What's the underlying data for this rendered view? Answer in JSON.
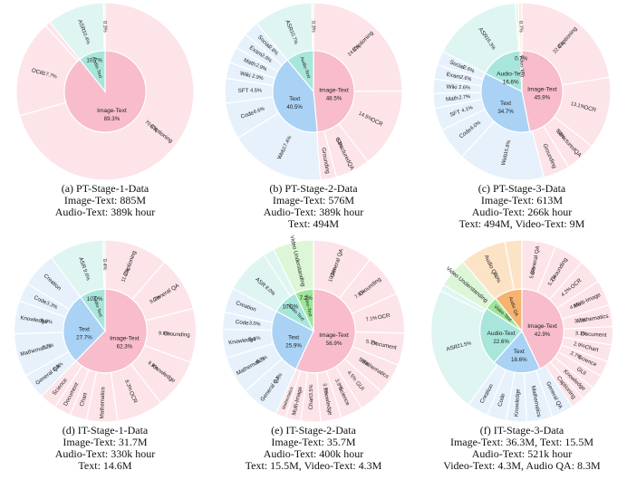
{
  "chart_data": [
    {
      "type": "sunburst",
      "caption": [
        "(a) PT-Stage-1-Data",
        "Image-Text: 885M",
        "Audio-Text: 389k hour"
      ],
      "inner": [
        {
          "name": "Image-Text",
          "value": 89.3,
          "pct": "89.3%",
          "color": "#f8bccb"
        },
        {
          "name": "Audio-Text",
          "value": 10.7,
          "pct": "10.7%",
          "color": "#a8e6dc"
        }
      ],
      "outer": [
        {
          "name": "Captioning",
          "value": 70.6,
          "pct": "70.6%",
          "color": "#fce4e8"
        },
        {
          "name": "OCR",
          "value": 17.7,
          "pct": "17.7%",
          "color": "#fce4e8"
        },
        {
          "name": "",
          "value": 1.0,
          "pct": "",
          "color": "#fce4e8"
        },
        {
          "name": "ASR",
          "value": 10.4,
          "pct": "10.4%",
          "color": "#dff5f2"
        },
        {
          "name": "",
          "value": 0.3,
          "pct": "0.3%",
          "color": "#dff5f2"
        }
      ]
    },
    {
      "type": "sunburst",
      "caption": [
        "(b) PT-Stage-2-Data",
        "Image-Text: 576M",
        "Audio-Text: 389k hour",
        "Text: 494M"
      ],
      "inner": [
        {
          "name": "Image-Text",
          "value": 48.5,
          "pct": "48.5%",
          "color": "#f8bccb"
        },
        {
          "name": "Text",
          "value": 40.5,
          "pct": "40.5%",
          "color": "#a9d2f5"
        },
        {
          "name": "Audio-Text",
          "value": 11.0,
          "pct": "",
          "color": "#a8e6dc"
        }
      ],
      "outer": [
        {
          "name": "Captioning",
          "value": 24.8,
          "pct": "24.8%",
          "color": "#fce4e8"
        },
        {
          "name": "OCR",
          "value": 14.5,
          "pct": "14.5%",
          "color": "#fce4e8"
        },
        {
          "name": "StructuredQA",
          "value": 6.3,
          "pct": "6.3%",
          "color": "#fce4e8"
        },
        {
          "name": "Grounding",
          "value": 2.9,
          "pct": "",
          "color": "#fce4e8"
        },
        {
          "name": "Web",
          "value": 17.4,
          "pct": "17.4%",
          "color": "#e6f1fb"
        },
        {
          "name": "Code",
          "value": 6.6,
          "pct": "6.6%",
          "color": "#e6f1fb"
        },
        {
          "name": "SFT",
          "value": 4.5,
          "pct": "4.5%",
          "color": "#e6f1fb"
        },
        {
          "name": "Wiki",
          "value": 2.9,
          "pct": "2.9%",
          "color": "#e6f1fb"
        },
        {
          "name": "Math",
          "value": 2.9,
          "pct": "2.9%",
          "color": "#e6f1fb"
        },
        {
          "name": "Exam",
          "value": 2.9,
          "pct": "2.9%",
          "color": "#e6f1fb"
        },
        {
          "name": "Social",
          "value": 2.8,
          "pct": "2.8%",
          "color": "#e6f1fb"
        },
        {
          "name": "ASR",
          "value": 10.7,
          "pct": "10.7%",
          "color": "#dff5f2"
        },
        {
          "name": "",
          "value": 0.3,
          "pct": "0.3%",
          "color": "#dff5f2"
        }
      ]
    },
    {
      "type": "sunburst",
      "caption": [
        "(c) PT-Stage-3-Data",
        "Image-Text: 613M",
        "Audio-Text: 266k hour",
        "Text: 494M, Video-Text: 9M"
      ],
      "inner": [
        {
          "name": "Image-Text",
          "value": 45.9,
          "pct": "45.9%",
          "color": "#f8bccb"
        },
        {
          "name": "Text",
          "value": 34.7,
          "pct": "34.7%",
          "color": "#a9d2f5"
        },
        {
          "name": "Audio-Text",
          "value": 16.6,
          "pct": "16.6%",
          "color": "#a8e6dc"
        },
        {
          "name": "Video-Text",
          "value": 0.7,
          "pct": "0.7%",
          "color": "#f6cfa0"
        }
      ],
      "outer": [
        {
          "name": "Captioning",
          "value": 22.4,
          "pct": "22.4%",
          "color": "#fce4e8"
        },
        {
          "name": "OCR",
          "value": 13.1,
          "pct": "13.1%",
          "color": "#fce4e8"
        },
        {
          "name": "StructuredQA",
          "value": 5.6,
          "pct": "5.6%",
          "color": "#fce4e8"
        },
        {
          "name": "Grounding",
          "value": 4.8,
          "pct": "",
          "color": "#fce4e8"
        },
        {
          "name": "Web",
          "value": 15.8,
          "pct": "15.8%",
          "color": "#e6f1fb"
        },
        {
          "name": "Code",
          "value": 6.0,
          "pct": "6.0%",
          "color": "#e6f1fb"
        },
        {
          "name": "SFT",
          "value": 4.1,
          "pct": "4.1%",
          "color": "#e6f1fb"
        },
        {
          "name": "Math",
          "value": 2.7,
          "pct": "2.7%",
          "color": "#e6f1fb"
        },
        {
          "name": "Wiki",
          "value": 2.6,
          "pct": "2.6%",
          "color": "#e6f1fb"
        },
        {
          "name": "Exam",
          "value": 2.6,
          "pct": "2.6%",
          "color": "#e6f1fb"
        },
        {
          "name": "Social",
          "value": 2.6,
          "pct": "2.6%",
          "color": "#e6f1fb"
        },
        {
          "name": "ASR",
          "value": 16.3,
          "pct": "16.3%",
          "color": "#dff5f2"
        },
        {
          "name": "",
          "value": 0.5,
          "pct": "",
          "color": "#dff5f2"
        },
        {
          "name": "",
          "value": 0.7,
          "pct": "0.7%",
          "color": "#fdeedd"
        }
      ]
    },
    {
      "type": "sunburst",
      "caption": [
        "(d) IT-Stage-1-Data",
        "Image-Text: 31.7M",
        "Audio-Text: 330k hour",
        "Text: 14.6M"
      ],
      "inner": [
        {
          "name": "Image-Text",
          "value": 62.3,
          "pct": "62.3%",
          "color": "#f8bccb"
        },
        {
          "name": "Text",
          "value": 27.7,
          "pct": "27.7%",
          "color": "#a9d2f5"
        },
        {
          "name": "Audio-Text",
          "value": 10.0,
          "pct": "10.0%",
          "color": "#a8e6dc"
        }
      ],
      "outer": [
        {
          "name": "Captioning",
          "value": 11.3,
          "pct": "11.3%",
          "color": "#fce4e8"
        },
        {
          "name": "General QA",
          "value": 9.7,
          "pct": "9.7%",
          "color": "#fce4e8"
        },
        {
          "name": "Grounding",
          "value": 9.6,
          "pct": "9.6%",
          "color": "#fce4e8"
        },
        {
          "name": "Knowledge",
          "value": 8.9,
          "pct": "8.9%",
          "color": "#fce4e8"
        },
        {
          "name": "OCR",
          "value": 8.3,
          "pct": "8.3%",
          "color": "#fce4e8"
        },
        {
          "name": "Mathematics",
          "value": 5.5,
          "pct": "",
          "color": "#fce4e8"
        },
        {
          "name": "Chart",
          "value": 3.0,
          "pct": "",
          "color": "#fce4e8"
        },
        {
          "name": "Document",
          "value": 3.0,
          "pct": "",
          "color": "#fce4e8"
        },
        {
          "name": "Science",
          "value": 3.0,
          "pct": "",
          "color": "#fce4e8"
        },
        {
          "name": "General QA",
          "value": 4.5,
          "pct": "4.5%",
          "color": "#e6f1fb"
        },
        {
          "name": "Mathematics",
          "value": 7.7,
          "pct": "7.7%",
          "color": "#e6f1fb"
        },
        {
          "name": "Knowledge",
          "value": 5.9,
          "pct": "5.9%",
          "color": "#e6f1fb"
        },
        {
          "name": "Code",
          "value": 3.3,
          "pct": "3.3%",
          "color": "#e6f1fb"
        },
        {
          "name": "Creation",
          "value": 6.3,
          "pct": "",
          "color": "#e6f1fb"
        },
        {
          "name": "ASR",
          "value": 9.6,
          "pct": "9.6%",
          "color": "#dff5f2"
        },
        {
          "name": "",
          "value": 0.4,
          "pct": "0.4%",
          "color": "#dff5f2"
        }
      ]
    },
    {
      "type": "sunburst",
      "caption": [
        "(e) IT-Stage-2-Data",
        "Image-Text: 35.7M",
        "Audio-Text: 400k hour",
        "Text: 15.5M, Video-Text: 4.3M"
      ],
      "inner": [
        {
          "name": "Image-Text",
          "value": 56.9,
          "pct": "56.9%",
          "color": "#f8bccb"
        },
        {
          "name": "Text",
          "value": 25.9,
          "pct": "25.9%",
          "color": "#a9d2f5"
        },
        {
          "name": "Audio-Text",
          "value": 10.0,
          "pct": "10.0%",
          "color": "#a8e6dc"
        },
        {
          "name": "Video-Text",
          "value": 7.2,
          "pct": "7.2%",
          "color": "#9ee69a"
        }
      ],
      "outer": [
        {
          "name": "General QA",
          "value": 10.6,
          "pct": "10.6%",
          "color": "#fce4e8"
        },
        {
          "name": "Grounding",
          "value": 7.6,
          "pct": "7.6%",
          "color": "#fce4e8"
        },
        {
          "name": "OCR",
          "value": 7.1,
          "pct": "7.1%",
          "color": "#fce4e8"
        },
        {
          "name": "Document",
          "value": 5.7,
          "pct": "5.7%",
          "color": "#fce4e8"
        },
        {
          "name": "Mathematics",
          "value": 5.5,
          "pct": "5.5%",
          "color": "#fce4e8"
        },
        {
          "name": "GUI",
          "value": 4.5,
          "pct": "4.5%",
          "color": "#fce4e8"
        },
        {
          "name": "Science",
          "value": 3.9,
          "pct": "3.9%",
          "color": "#fce4e8"
        },
        {
          "name": "Knowledge",
          "value": 3.7,
          "pct": "3.7%",
          "color": "#fce4e8"
        },
        {
          "name": "Chart",
          "value": 3.5,
          "pct": "3.5%",
          "color": "#fce4e8"
        },
        {
          "name": "Multi-Image",
          "value": 2.7,
          "pct": "",
          "color": "#fce4e8"
        },
        {
          "name": "Mathematics",
          "value": 1.8,
          "pct": "",
          "color": "#fce4e8"
        },
        {
          "name": "General QA",
          "value": 6.7,
          "pct": "6.7%",
          "color": "#e6f1fb"
        },
        {
          "name": "Mathematics",
          "value": 6.7,
          "pct": "6.7%",
          "color": "#e6f1fb"
        },
        {
          "name": "Knowledge",
          "value": 5.1,
          "pct": "5.1%",
          "color": "#e6f1fb"
        },
        {
          "name": "Code",
          "value": 3.0,
          "pct": "3.0%",
          "color": "#e6f1fb"
        },
        {
          "name": "Creation",
          "value": 4.4,
          "pct": "",
          "color": "#e6f1fb"
        },
        {
          "name": "ASR",
          "value": 8.0,
          "pct": "8.0%",
          "color": "#dff5f2"
        },
        {
          "name": "",
          "value": 2.0,
          "pct": "",
          "color": "#dff5f2"
        },
        {
          "name": "Video Understanding",
          "value": 7.2,
          "pct": "",
          "color": "#ddf6d8"
        }
      ]
    },
    {
      "type": "sunburst",
      "caption": [
        "(f) IT-Stage-3-Data",
        "Image-Text: 36.3M, Text: 15.5M",
        "Audio-Text: 521k hour",
        "Video-Text: 4.3M, Audio QA: 8.3M"
      ],
      "inner": [
        {
          "name": "Image-Text",
          "value": 42.9,
          "pct": "42.9%",
          "color": "#f8bccb"
        },
        {
          "name": "Text",
          "value": 18.6,
          "pct": "18.6%",
          "color": "#a9d2f5"
        },
        {
          "name": "Audio-Text",
          "value": 22.6,
          "pct": "22.6%",
          "color": "#a8e6dc"
        },
        {
          "name": "Video-Text",
          "value": 5.1,
          "pct": "",
          "color": "#9ee69a"
        },
        {
          "name": "Audio QA",
          "value": 10.8,
          "pct": "",
          "color": "#f6b36e"
        }
      ],
      "outer": [
        {
          "name": "General QA",
          "value": 5.8,
          "pct": "5.8%",
          "color": "#fce4e8"
        },
        {
          "name": "Grounding",
          "value": 5.2,
          "pct": "5.2%",
          "color": "#fce4e8"
        },
        {
          "name": "OCR",
          "value": 4.2,
          "pct": "4.2%",
          "color": "#fce4e8"
        },
        {
          "name": "Multi-Image",
          "value": 4.4,
          "pct": "4.4%",
          "color": "#fce4e8"
        },
        {
          "name": "Mathematics",
          "value": 3.7,
          "pct": "3.7%",
          "color": "#fce4e8"
        },
        {
          "name": "Document",
          "value": 3.1,
          "pct": "3.1%",
          "color": "#fce4e8"
        },
        {
          "name": "Chart",
          "value": 2.9,
          "pct": "2.9%",
          "color": "#fce4e8"
        },
        {
          "name": "Science",
          "value": 2.7,
          "pct": "2.7%",
          "color": "#fce4e8"
        },
        {
          "name": "GUI",
          "value": 2.4,
          "pct": "",
          "color": "#fce4e8"
        },
        {
          "name": "Knowledge",
          "value": 2.4,
          "pct": "",
          "color": "#fce4e8"
        },
        {
          "name": "Captioning",
          "value": 2.3,
          "pct": "",
          "color": "#fce4e8"
        },
        {
          "name": "General QA",
          "value": 3.8,
          "pct": "",
          "color": "#e6f1fb"
        },
        {
          "name": "Mathematics",
          "value": 4.4,
          "pct": "",
          "color": "#e6f1fb"
        },
        {
          "name": "Knowledge",
          "value": 3.5,
          "pct": "",
          "color": "#e6f1fb"
        },
        {
          "name": "Code",
          "value": 3.3,
          "pct": "",
          "color": "#e6f1fb"
        },
        {
          "name": "Creation",
          "value": 3.6,
          "pct": "",
          "color": "#e6f1fb"
        },
        {
          "name": "ASR",
          "value": 21.5,
          "pct": "21.5%",
          "color": "#dff5f2"
        },
        {
          "name": "",
          "value": 1.1,
          "pct": "",
          "color": "#dff5f2"
        },
        {
          "name": "Video Understanding",
          "value": 5.1,
          "pct": "",
          "color": "#ddf6d8"
        },
        {
          "name": "Audio QA",
          "value": 7.9,
          "pct": "7.9%",
          "color": "#fde3c6"
        },
        {
          "name": "",
          "value": 2.9,
          "pct": "",
          "color": "#fde3c6"
        }
      ]
    }
  ]
}
